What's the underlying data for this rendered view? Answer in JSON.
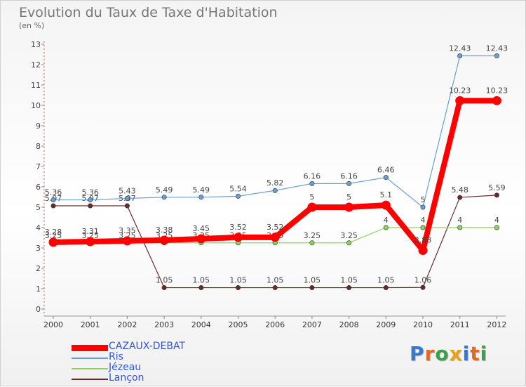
{
  "title": "Evolution du Taux de Taxe d'Habitation",
  "unit_label": "(en %)",
  "brand": {
    "text": "Proxiti",
    "letters": [
      "P",
      "r",
      "o",
      "x",
      "i",
      "t",
      "i"
    ],
    "colors": [
      "#3a78c8",
      "#e06a2a",
      "#3ea04a",
      "#e8a21a",
      "#3a78c8",
      "#e06a2a",
      "#3ea04a"
    ]
  },
  "chart_data": {
    "type": "line",
    "title": "Evolution du Taux de Taxe d'Habitation",
    "ylabel": "(en %)",
    "ylim": [
      0,
      13
    ],
    "yticks": [
      0,
      1,
      2,
      3,
      4,
      5,
      6,
      7,
      8,
      9,
      10,
      11,
      12,
      13
    ],
    "x": [
      "2000",
      "2001",
      "2002",
      "2003",
      "2004",
      "2005",
      "2006",
      "2007",
      "2008",
      "2009",
      "2010",
      "2011",
      "2012"
    ],
    "grid": false,
    "legend_position": "bottom-left",
    "series": [
      {
        "name": "Lançon",
        "color": "#6b2a2a",
        "width": 1.2,
        "values": [
          5.07,
          5.07,
          5.07,
          1.05,
          1.05,
          1.05,
          1.05,
          1.05,
          1.05,
          1.05,
          1.06,
          5.48,
          5.59
        ],
        "labels": [
          "5.07",
          "5.07",
          "5.07",
          "1.05",
          "1.05",
          "1.05",
          "1.05",
          "1.05",
          "1.05",
          "1.05",
          "1.06",
          "5.48",
          "5.59"
        ]
      },
      {
        "name": "Jézeau",
        "color": "#8ed459",
        "width": 1.2,
        "values": [
          3.25,
          3.25,
          3.25,
          3.25,
          3.25,
          3.25,
          3.25,
          3.25,
          3.25,
          4,
          4,
          4,
          4
        ],
        "labels": [
          "3.25",
          "3.25",
          "3.25",
          "3.25",
          "3.25",
          "3.25",
          "3.25",
          "3.25",
          "3.25",
          "4",
          "4",
          "4",
          "4"
        ]
      },
      {
        "name": "Ris",
        "color": "#6a9fd4",
        "width": 1.2,
        "values": [
          5.36,
          5.36,
          5.43,
          5.49,
          5.49,
          5.54,
          5.82,
          6.16,
          6.16,
          6.46,
          5,
          12.43,
          12.43
        ],
        "labels": [
          "5.36",
          "5.36",
          "5.43",
          "5.49",
          "5.49",
          "5.54",
          "5.82",
          "6.16",
          "6.16",
          "6.46",
          "5",
          "12.43",
          "12.43"
        ]
      },
      {
        "name": "CAZAUX-DEBAT",
        "color": "#ff0000",
        "width": 8,
        "values": [
          3.28,
          3.31,
          3.35,
          3.38,
          3.45,
          3.52,
          3.52,
          5,
          5,
          5.1,
          2.88,
          10.23,
          10.23
        ],
        "labels": [
          "3.28",
          "3.31",
          "3.35",
          "3.38",
          "3.45",
          "3.52",
          "3.52",
          "5",
          "5",
          "5.1",
          "2.88",
          "10.23",
          "10.23"
        ]
      }
    ]
  },
  "legend": [
    {
      "name": "CAZAUX-DEBAT",
      "color": "#ff0000",
      "thickness": 9
    },
    {
      "name": "Ris",
      "color": "#6a9fd4",
      "thickness": 2
    },
    {
      "name": "Jézeau",
      "color": "#8ed459",
      "thickness": 2
    },
    {
      "name": "Lançon",
      "color": "#6b2a2a",
      "thickness": 2
    }
  ]
}
